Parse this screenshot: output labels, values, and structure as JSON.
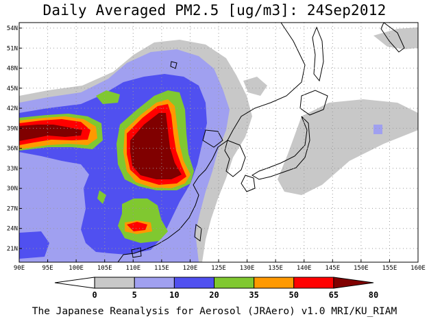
{
  "title": "Daily Averaged PM2.5 [ug/m3]: 24Sep2012",
  "footer": "The Japanese Reanalysis for Aerosol (JRAero) v1.0 MRI/KU_RIAM",
  "axes": {
    "x_ticks": [
      "90E",
      "95E",
      "100E",
      "105E",
      "110E",
      "115E",
      "120E",
      "125E",
      "130E",
      "135E",
      "140E",
      "145E",
      "150E",
      "155E",
      "160E"
    ],
    "y_ticks": [
      "54N",
      "51N",
      "48N",
      "45N",
      "42N",
      "39N",
      "36N",
      "33N",
      "30N",
      "27N",
      "24N",
      "21N"
    ]
  },
  "colorbar": {
    "labels": [
      "0",
      "5",
      "10",
      "20",
      "35",
      "50",
      "65",
      "80"
    ],
    "colors": [
      "#ffffff",
      "#c8c8c8",
      "#a0a0f0",
      "#5050f0",
      "#80c830",
      "#ff9900",
      "#ff0000",
      "#800000"
    ]
  },
  "palette": {
    "land_edge": "#000000",
    "grid": "#999999"
  }
}
